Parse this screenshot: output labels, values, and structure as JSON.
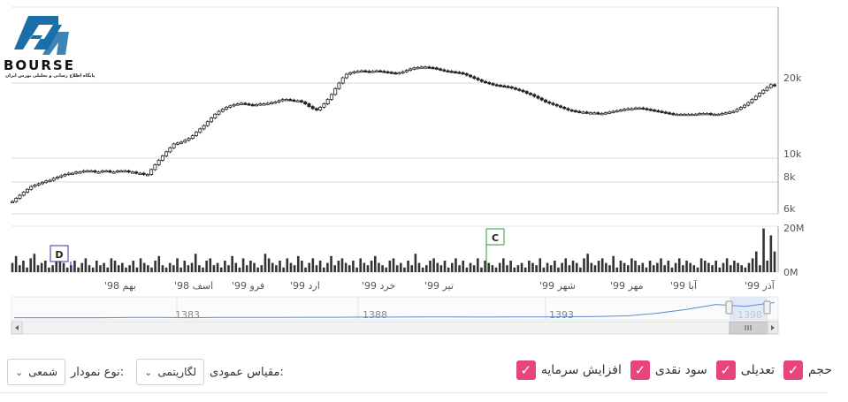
{
  "logo": {
    "text": "BOURSE",
    "subtitle": "پایگاه اطلاع رسانی و تحلیلی بورس ایران"
  },
  "colors": {
    "candle": "#222222",
    "grid": "#d8d8d8",
    "axis": "#9ab",
    "nav_line": "#5b8bd0",
    "nav_fill": "#dde8f6",
    "checkbox": "#e8457a",
    "flag_d": "#3333aa",
    "flag_c": "#2e9b2e"
  },
  "chart_data": {
    "type": "candlestick",
    "price_axis": {
      "scale": "log",
      "ylim": [
        5500,
        30000
      ],
      "ticks": [
        "20k",
        "10k",
        "8k",
        "6k"
      ],
      "tick_values": [
        20000,
        10000,
        8000,
        6000
      ]
    },
    "volume_axis": {
      "ylim": [
        0,
        20000000
      ],
      "ticks": [
        "20M",
        "0M"
      ],
      "tick_values": [
        20000000,
        0
      ]
    },
    "x_labels": [
      "بهم 98'",
      "اسف 98'",
      "فرو 99'",
      "ارد 99'",
      "خرد 99'",
      "تیر 99'",
      "شهر 99'",
      "مهر 99'",
      "آبا 99'",
      "آذر 99'"
    ],
    "price_points": [
      6700,
      6900,
      7100,
      7300,
      7500,
      7700,
      7800,
      7900,
      8000,
      8100,
      8150,
      8300,
      8400,
      8500,
      8600,
      8700,
      8700,
      8800,
      8800,
      8900,
      8900,
      8900,
      8800,
      8800,
      8900,
      8900,
      8800,
      8800,
      8900,
      8900,
      8900,
      8800,
      8800,
      8700,
      8700,
      8600,
      8600,
      9000,
      9400,
      9800,
      10200,
      10600,
      11000,
      11400,
      11500,
      11600,
      11800,
      12000,
      12300,
      12700,
      13100,
      13500,
      14000,
      14500,
      15000,
      15400,
      15700,
      16000,
      16200,
      16400,
      16500,
      16600,
      16500,
      16400,
      16300,
      16400,
      16500,
      16500,
      16600,
      16700,
      16800,
      17000,
      17200,
      17200,
      17100,
      17000,
      17000,
      16800,
      16500,
      16100,
      15800,
      15600,
      16000,
      16500,
      17200,
      18000,
      19000,
      20000,
      21000,
      21700,
      22000,
      22200,
      22300,
      22400,
      22300,
      22200,
      22300,
      22400,
      22300,
      22200,
      22100,
      22000,
      21900,
      22000,
      22200,
      22500,
      22800,
      23000,
      23100,
      23200,
      23200,
      23100,
      23000,
      22800,
      22600,
      22400,
      22300,
      22200,
      22100,
      22000,
      21800,
      21500,
      21200,
      20900,
      20600,
      20300,
      20100,
      19900,
      19700,
      19600,
      19500,
      19400,
      19300,
      19100,
      18900,
      18700,
      18500,
      18200,
      18000,
      17700,
      17400,
      17100,
      16800,
      16600,
      16400,
      16200,
      16000,
      15800,
      15600,
      15500,
      15400,
      15300,
      15300,
      15200,
      15200,
      15200,
      15100,
      15100,
      15200,
      15300,
      15400,
      15500,
      15600,
      15700,
      15800,
      15800,
      15900,
      15900,
      15800,
      15700,
      15600,
      15500,
      15400,
      15300,
      15200,
      15100,
      15000,
      15000,
      15000,
      15000,
      15000,
      15000,
      15000,
      15100,
      15100,
      15100,
      15000,
      15000,
      15000,
      15100,
      15200,
      15300,
      15400,
      15700,
      16000,
      16300,
      16700,
      17200,
      17700,
      18200,
      18700,
      19200,
      19700,
      19500
    ],
    "volume_values": [
      4,
      7,
      3,
      5,
      2,
      6,
      8,
      3,
      4,
      5,
      2,
      3,
      6,
      9,
      4,
      2,
      3,
      5,
      2,
      4,
      6,
      3,
      2,
      5,
      3,
      4,
      2,
      6,
      5,
      3,
      4,
      2,
      3,
      5,
      2,
      6,
      4,
      3,
      2,
      5,
      7,
      3,
      2,
      4,
      3,
      6,
      2,
      5,
      3,
      4,
      8,
      3,
      2,
      5,
      6,
      3,
      4,
      2,
      5,
      3,
      7,
      4,
      2,
      6,
      3,
      5,
      4,
      2,
      3,
      8,
      6,
      4,
      3,
      5,
      2,
      6,
      4,
      3,
      7,
      5,
      2,
      4,
      6,
      3,
      5,
      2,
      4,
      7,
      3,
      5,
      6,
      4,
      3,
      5,
      2,
      6,
      4,
      3,
      5,
      7,
      4,
      3,
      2,
      5,
      6,
      3,
      4,
      2,
      5,
      3,
      8,
      4,
      2,
      3,
      5,
      6,
      4,
      3,
      5,
      2,
      4,
      6,
      3,
      5,
      2,
      4,
      3,
      6,
      2,
      5,
      4,
      3,
      2,
      4,
      6,
      3,
      5,
      2,
      3,
      4,
      2,
      5,
      4,
      3,
      6,
      2,
      4,
      3,
      5,
      2,
      4,
      6,
      3,
      5,
      4,
      2,
      6,
      8,
      4,
      3,
      5,
      6,
      4,
      3,
      7,
      2,
      5,
      4,
      3,
      6,
      5,
      3,
      4,
      2,
      5,
      3,
      4,
      6,
      3,
      5,
      2,
      4,
      6,
      3,
      5,
      4,
      3,
      2,
      6,
      5,
      4,
      3,
      5,
      2,
      4,
      6,
      3,
      5,
      4,
      3,
      2,
      4,
      6,
      9,
      3,
      19,
      5,
      16,
      9
    ],
    "flags": [
      {
        "letter": "D"
      },
      {
        "letter": "C"
      }
    ]
  },
  "navigator": {
    "labels": [
      "1383",
      "1388",
      "1393",
      "1398"
    ],
    "values": [
      0.02,
      0.02,
      0.02,
      0.02,
      0.03,
      0.03,
      0.02,
      0.03,
      0.03,
      0.03,
      0.04,
      0.04,
      0.05,
      0.05,
      0.06,
      0.06,
      0.05,
      0.06,
      0.06,
      0.07,
      0.08,
      0.12,
      0.25,
      0.45,
      0.7,
      0.6,
      0.8
    ]
  },
  "controls": {
    "chart_type_label": "نوع نمودار:",
    "chart_type_value": "شمعی",
    "scale_label": "مقیاس عمودی:",
    "scale_value": "لگاریتمی",
    "checkboxes": [
      {
        "label": "حجم",
        "checked": true
      },
      {
        "label": "تعدیلی",
        "checked": true
      },
      {
        "label": "سود نقدی",
        "checked": true
      },
      {
        "label": "افزایش سرمایه",
        "checked": true
      }
    ]
  }
}
